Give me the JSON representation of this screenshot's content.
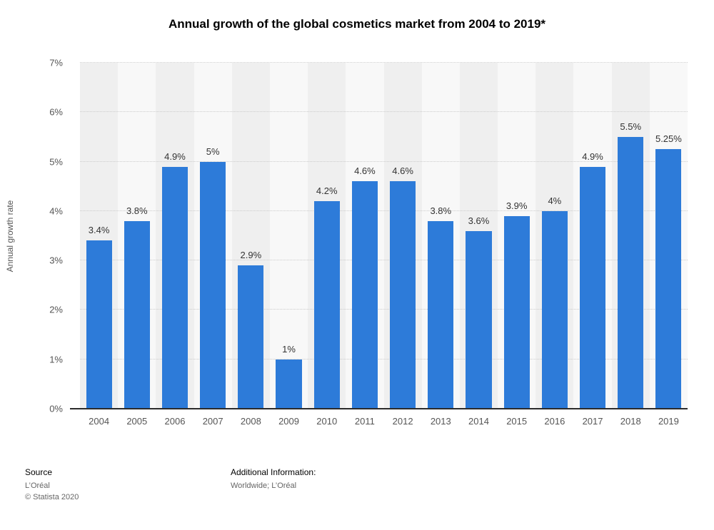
{
  "title": "Annual growth of the global cosmetics market from 2004 to 2019*",
  "chart_data": {
    "type": "bar",
    "categories": [
      "2004",
      "2005",
      "2006",
      "2007",
      "2008",
      "2009",
      "2010",
      "2011",
      "2012",
      "2013",
      "2014",
      "2015",
      "2016",
      "2017",
      "2018",
      "2019"
    ],
    "values": [
      3.4,
      3.8,
      4.9,
      5,
      2.9,
      1,
      4.2,
      4.6,
      4.6,
      3.8,
      3.6,
      3.9,
      4,
      4.9,
      5.5,
      5.25
    ],
    "value_labels": [
      "3.4%",
      "3.8%",
      "4.9%",
      "5%",
      "2.9%",
      "1%",
      "4.2%",
      "4.6%",
      "4.6%",
      "3.8%",
      "3.6%",
      "3.9%",
      "4%",
      "4.9%",
      "5.5%",
      "5.25%"
    ],
    "title": "Annual growth of the global cosmetics market from 2004 to 2019*",
    "xlabel": "",
    "ylabel": "Annual growth rate",
    "ylim": [
      0,
      7
    ],
    "yticks": [
      "0%",
      "1%",
      "2%",
      "3%",
      "4%",
      "5%",
      "6%",
      "7%"
    ],
    "grid": true,
    "legend": false,
    "bar_color": "#2d7bd9",
    "band_colors": [
      "#efefef",
      "#f8f8f8"
    ]
  },
  "footer": {
    "source_label": "Source",
    "source_value": "L’Oréal",
    "copyright": "© Statista 2020",
    "additional_label": "Additional Information:",
    "additional_value": "Worldwide; L’Oréal"
  }
}
